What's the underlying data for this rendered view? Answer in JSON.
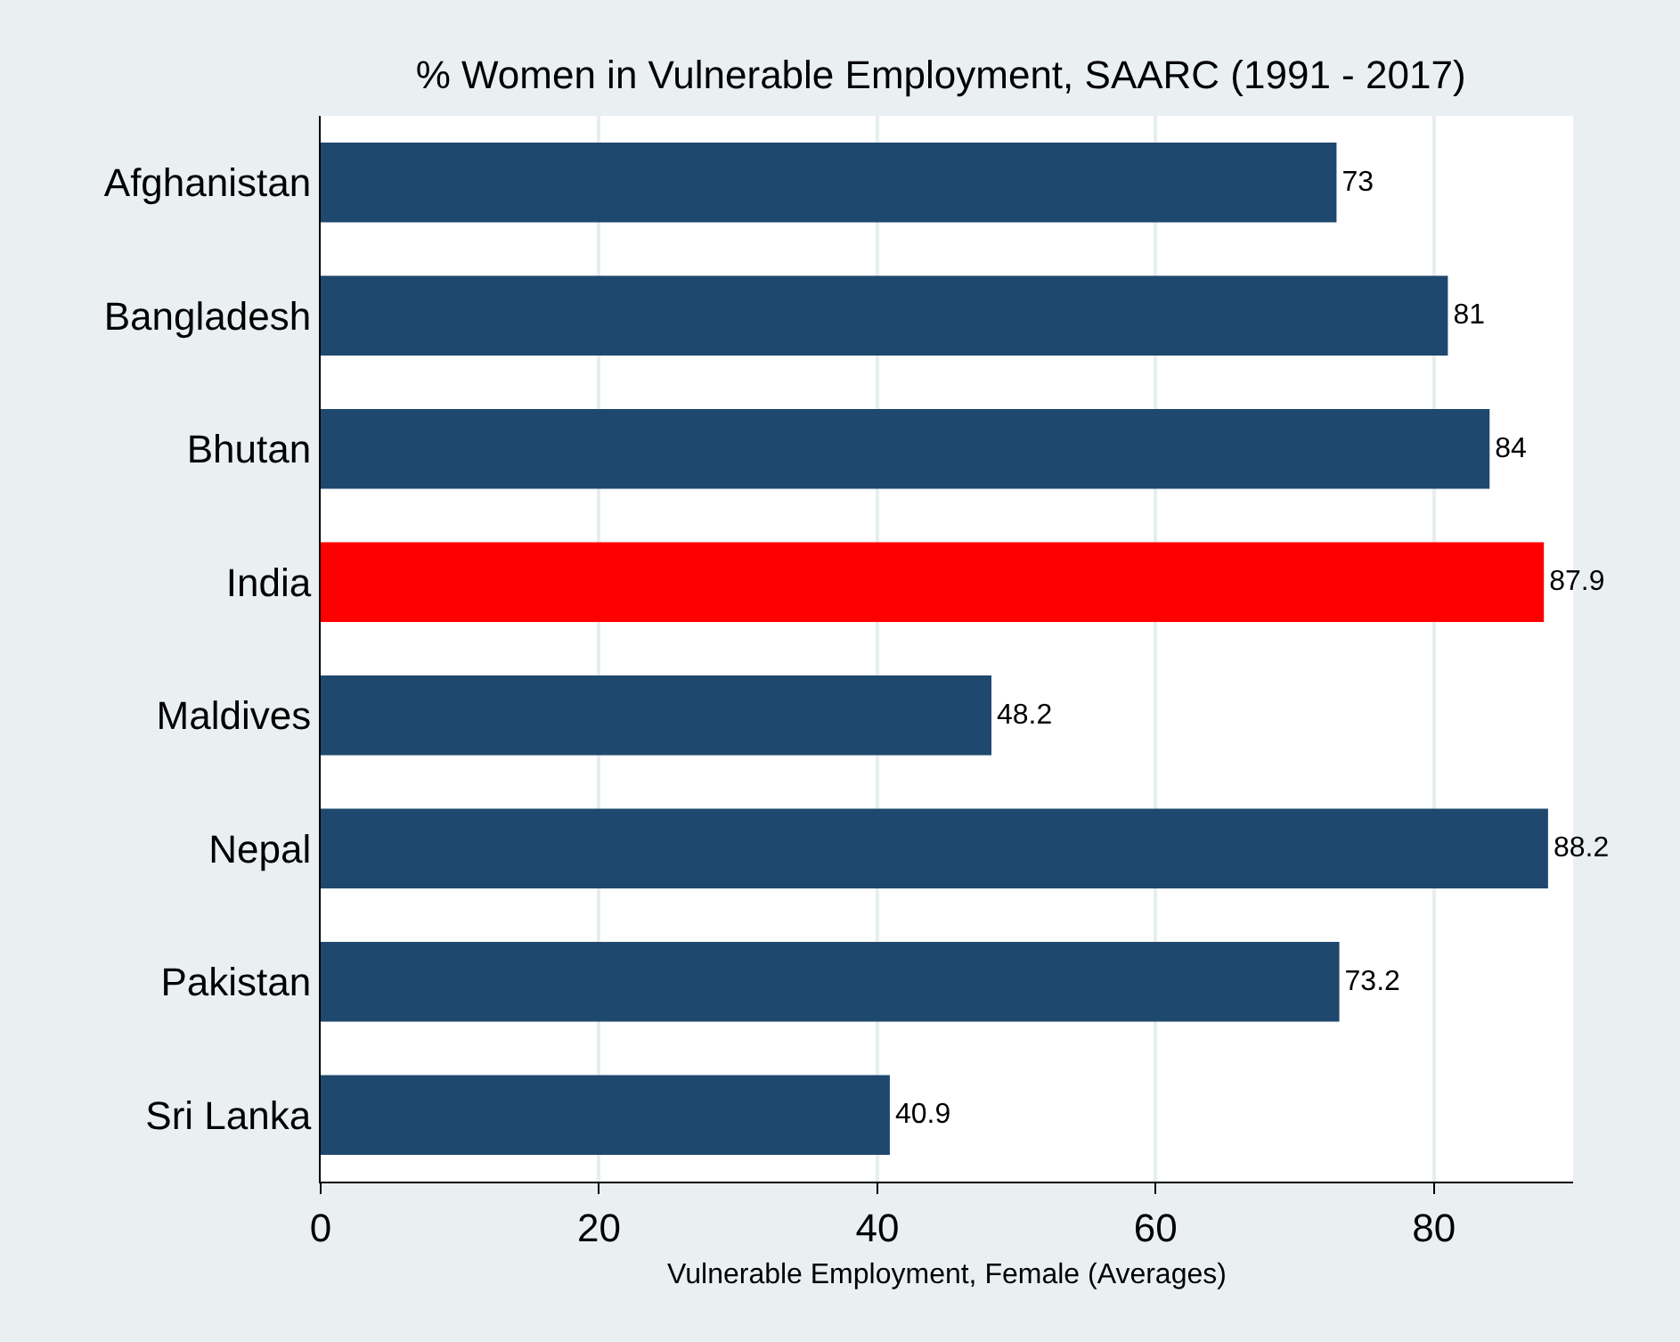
{
  "chart_data": {
    "type": "bar",
    "orientation": "horizontal",
    "title": "% Women in Vulnerable Employment, SAARC (1991 - 2017)",
    "xlabel": "Vulnerable Employment, Female (Averages)",
    "categories": [
      "Afghanistan",
      "Bangladesh",
      "Bhutan",
      "India",
      "Maldives",
      "Nepal",
      "Pakistan",
      "Sri Lanka"
    ],
    "values": [
      73,
      81,
      84,
      87.9,
      48.2,
      88.2,
      73.2,
      40.9
    ],
    "colors": [
      "#1f486e",
      "#1f486e",
      "#1f486e",
      "#ff0000",
      "#1f486e",
      "#1f486e",
      "#1f486e",
      "#1f486e"
    ],
    "xlim": [
      0,
      90
    ],
    "xticks": [
      0,
      20,
      40,
      60,
      80
    ],
    "grid": "x",
    "data_labels": true
  }
}
